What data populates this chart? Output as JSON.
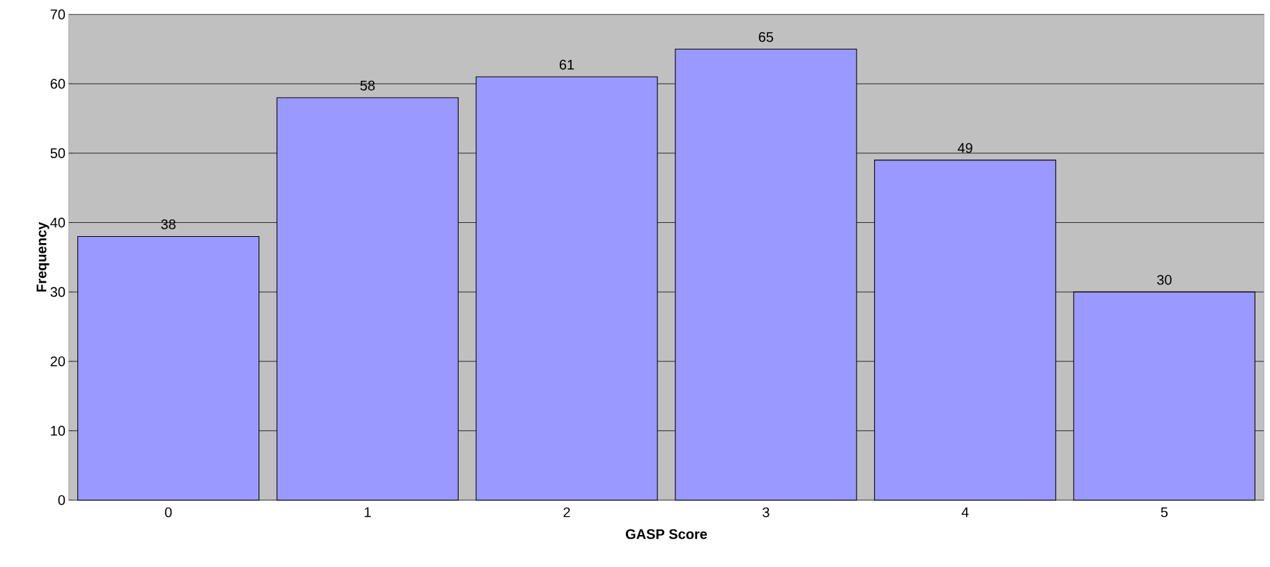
{
  "chart_data": {
    "type": "bar",
    "xlabel": "GASP Score",
    "ylabel": "Frequency",
    "categories": [
      "0",
      "1",
      "2",
      "3",
      "4",
      "5"
    ],
    "values": [
      38,
      58,
      61,
      65,
      49,
      30
    ],
    "color": "#9999ff",
    "ylim": [
      0,
      70
    ],
    "yticks": [
      0,
      10,
      20,
      30,
      40,
      50,
      60,
      70
    ],
    "grid": "y",
    "data_labels": true
  }
}
